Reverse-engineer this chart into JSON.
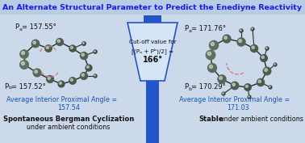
{
  "title": "An Alternate Structural Parameter to Predict the Enediyne Reactivity",
  "title_color": "#1a1aff",
  "title_bg": "#b8cce4",
  "bg_color": "#ccd9ea",
  "funnel_color": "#2255cc",
  "funnel_fill": "#d6e4f7",
  "cutoff_line1": "Cut-off value for",
  "cutoff_line2": "[(P",
  "cutoff_line2b": " + P",
  "cutoff_line2c": ")/2] =",
  "cutoff_line3": "166°",
  "left_pa": "P",
  "left_pa_sub": "a",
  "left_pa_val": "= 157.55°",
  "left_pb": "P",
  "left_pb_sub": "b",
  "left_pb_val": "= 157.52°",
  "left_avg1": "Average Interior Proximal Angle =",
  "left_avg2": "157.54",
  "left_bold": "Spontaneous Bergman Cyclization",
  "left_normal": "under ambient conditions",
  "right_pa_val": "= 171.76°",
  "right_pb_val": "= 170.29°",
  "right_avg1": "Average Interior Proximal Angle =",
  "right_avg2": "171.03",
  "right_bold": "Stable",
  "right_normal": " under ambient conditions",
  "blue": "#1155bb",
  "dark": "#111111",
  "atom_colors": [
    "#5a6a5a",
    "#6e7e6e",
    "#7a8a7a",
    "#8a9a8a",
    "#9aaa9a"
  ],
  "bond_color": "#2a2a2a",
  "arc_color": "#cc7777"
}
